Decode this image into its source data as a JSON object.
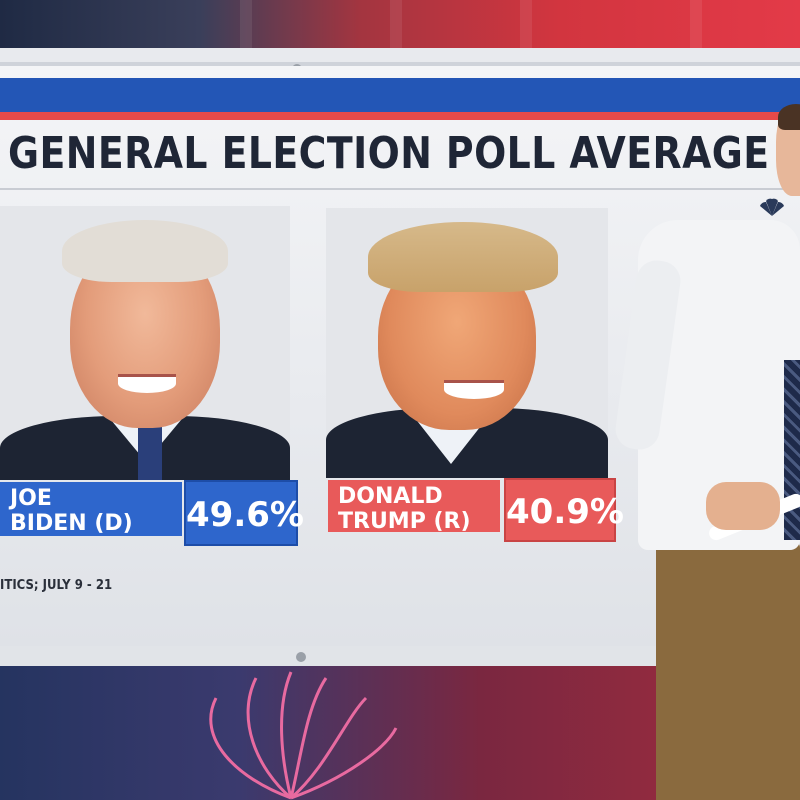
{
  "headline": "GENERAL ELECTION POLL AVERAGE",
  "candidates": [
    {
      "first": "JOE",
      "last_party": "BIDEN (D)",
      "percent": "49.6%",
      "color": "#2e66cc"
    },
    {
      "first": "DONALD",
      "last_party": "TRUMP (R)",
      "percent": "40.9%",
      "color": "#e85a5a"
    }
  ],
  "source_note": "ITICS; JULY 9 - 21",
  "icons": [
    "nbc-peacock-icon",
    "checkmark-icon"
  ],
  "colors": {
    "blue_bar": "#2356b6",
    "red_bar": "#e54a4a",
    "headline_text": "#1f2636"
  }
}
